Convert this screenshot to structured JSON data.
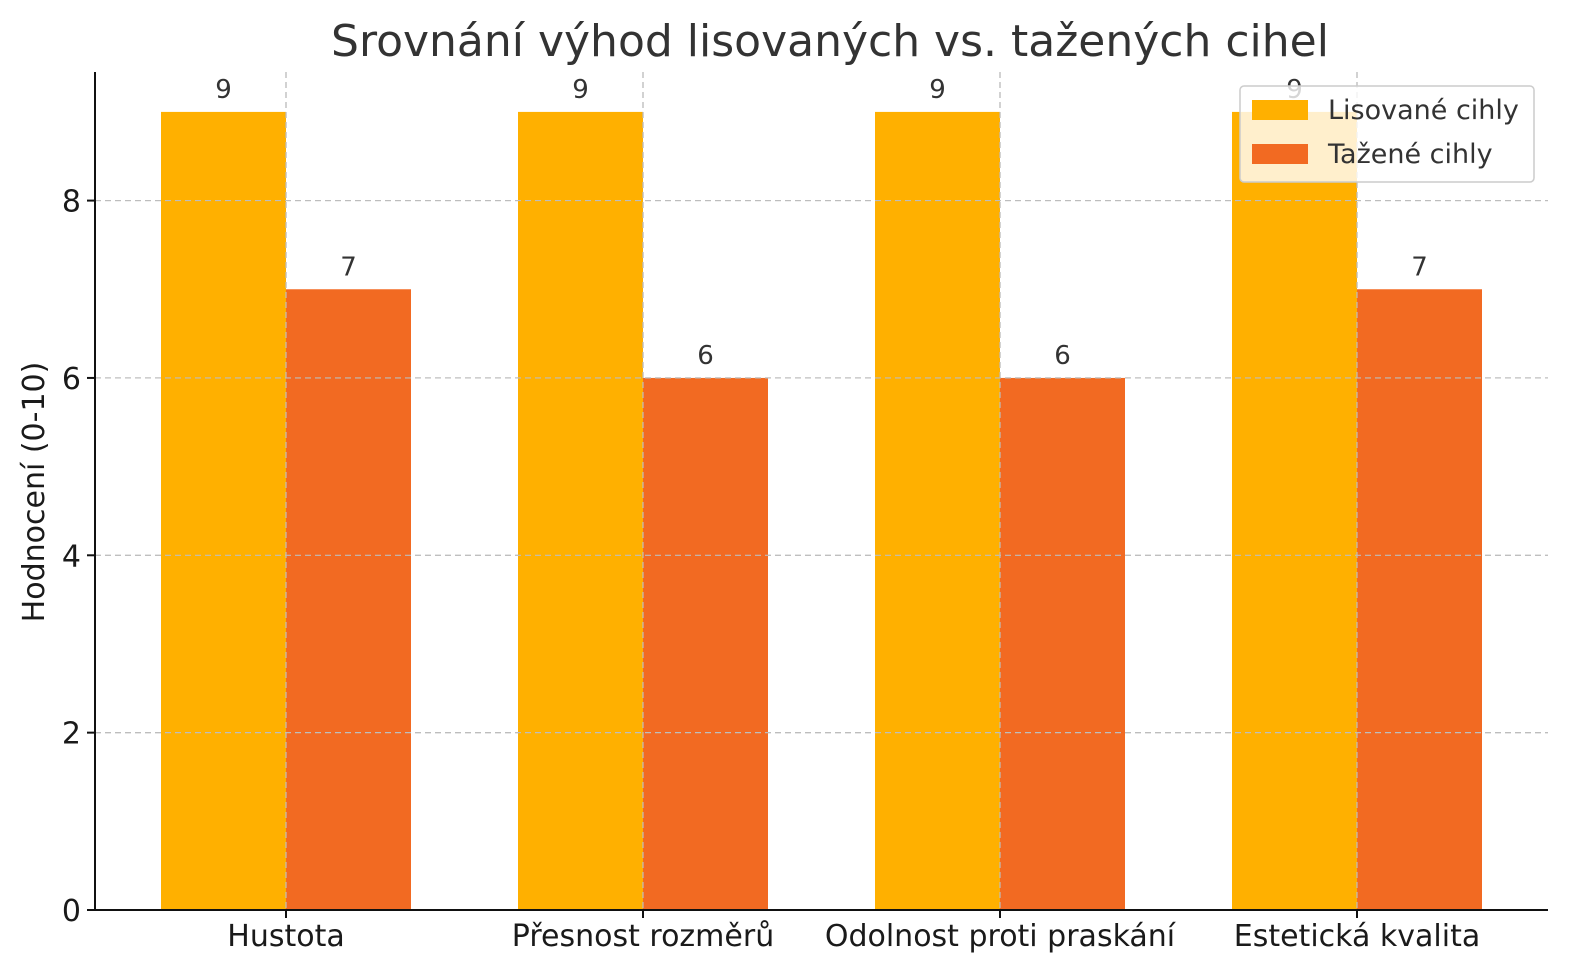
{
  "chart_data": {
    "type": "bar",
    "title": "Srovnání výhod lisovaných vs. tažených cihel",
    "xlabel": "",
    "ylabel": "Hodnocení (0-10)",
    "categories": [
      "Hustota",
      "Přesnost rozměrů",
      "Odolnost proti praskání",
      "Estetická kvalita"
    ],
    "series": [
      {
        "name": "Lisované cihly",
        "values": [
          9,
          9,
          9,
          9
        ],
        "color": "#FFB000"
      },
      {
        "name": "Tažené cihly",
        "values": [
          7,
          6,
          6,
          7
        ],
        "color": "#F26A22"
      }
    ],
    "ylim": [
      0,
      9.45
    ],
    "yticks": [
      0,
      2,
      4,
      6,
      8
    ],
    "grid": true,
    "legend_position": "top-right"
  }
}
